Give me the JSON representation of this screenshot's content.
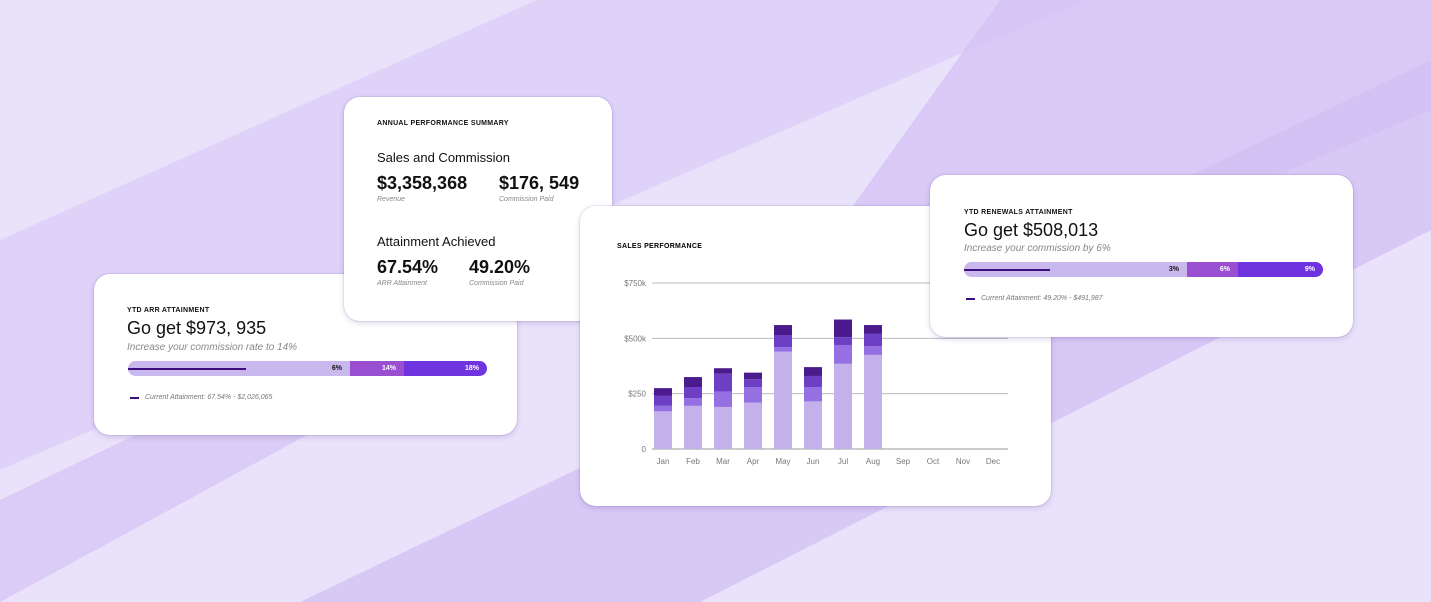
{
  "summary_card": {
    "heading": "ANNUAL PERFORMANCE SUMMARY",
    "sections": [
      {
        "title": "Sales and Commission",
        "metrics": [
          {
            "value": "$3,358,368",
            "label": "Revenue"
          },
          {
            "value": "$176, 549",
            "label": "Commission Paid"
          }
        ]
      },
      {
        "title": "Attainment Achieved",
        "metrics": [
          {
            "value": "67.54%",
            "label": "ARR Attainment"
          },
          {
            "value": "49.20%",
            "label": "Commission Paid"
          }
        ]
      }
    ]
  },
  "arr_card": {
    "heading": "YTD ARR ATTAINMENT",
    "title": "Go get $973, 935",
    "subtitle": "Increase your commission rate to 14%",
    "tiers": [
      "6%",
      "14%",
      "18%"
    ],
    "legend": "Current Attainment: 67.54% - $2,026,065"
  },
  "renewals_card": {
    "heading": "YTD RENEWALS ATTAINMENT",
    "title": "Go get $508,013",
    "subtitle": "Increase your commission by 6%",
    "tiers": [
      "3%",
      "6%",
      "9%"
    ],
    "legend": "Current Attainment: 49.20% - $491,987"
  },
  "chart_data": {
    "type": "stacked_bar",
    "title": "SALES PERFORMANCE",
    "categories": [
      "Jan",
      "Feb",
      "Mar",
      "Apr",
      "May",
      "Jun",
      "Jul",
      "Aug",
      "Sep",
      "Oct",
      "Nov",
      "Dec"
    ],
    "series": [
      {
        "color": "#c4b1ec",
        "values": [
          170000,
          195000,
          190000,
          210000,
          440000,
          215000,
          385000,
          425000,
          null,
          null,
          null,
          null
        ]
      },
      {
        "color": "#9570e2",
        "values": [
          25000,
          35000,
          70000,
          70000,
          20000,
          65000,
          85000,
          40000,
          null,
          null,
          null,
          null
        ]
      },
      {
        "color": "#6c3fc4",
        "values": [
          45000,
          50000,
          80000,
          35000,
          55000,
          50000,
          35000,
          55000,
          null,
          null,
          null,
          null
        ]
      },
      {
        "color": "#4b1b8e",
        "values": [
          35000,
          45000,
          25000,
          30000,
          45000,
          40000,
          80000,
          40000,
          null,
          null,
          null,
          null
        ]
      }
    ],
    "ylim": [
      0,
      750000
    ],
    "yticks": [
      0,
      {
        "value": 250000,
        "label": "$250"
      },
      {
        "value": 500000,
        "label": "$500k"
      },
      {
        "value": 750000,
        "label": "$750k"
      }
    ],
    "grid": true
  }
}
